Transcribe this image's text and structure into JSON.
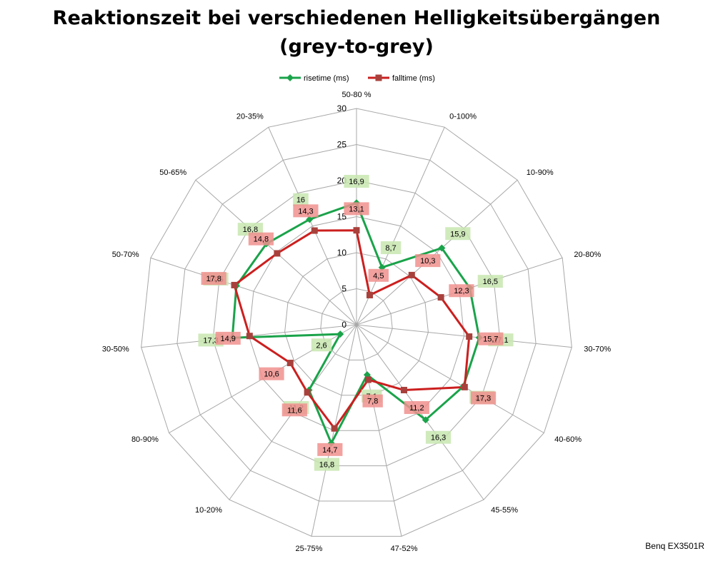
{
  "title_line1": "Reaktionszeit bei verschiedenen Helligkeitsübergängen",
  "title_line2": "(grey-to-grey)",
  "credit": "Benq EX3501R",
  "colors": {
    "rise": "#1aa34a",
    "fall": "#cc1f1f",
    "rise_label_bg": "#c8e6b0",
    "fall_label_bg": "#f0908e"
  },
  "chart_data": {
    "type": "radar",
    "categories": [
      "50-80 %",
      "0-100%",
      "10-90%",
      "20-80%",
      "30-70%",
      "40-60%",
      "45-55%",
      "47-52%",
      "25-75%",
      "10-20%",
      "80-90%",
      "30-50%",
      "50-70%",
      "50-65%",
      "20-35%"
    ],
    "rlim": [
      0,
      30
    ],
    "rticks": [
      0,
      5,
      10,
      15,
      20,
      25,
      30
    ],
    "legend_position": "top",
    "grid": true,
    "series": [
      {
        "name": "risetime (ms)",
        "values": [
          16.9,
          8.7,
          15.9,
          16.5,
          17.1,
          17.1,
          16.3,
          7.1,
          16.8,
          11.2,
          2.6,
          17.3,
          17.5,
          16.8,
          16
        ],
        "labels": [
          "16,9",
          "8,7",
          "15,9",
          "16,5",
          "17,1",
          "17,1",
          "16,3",
          "7,1",
          "16,8",
          "11,2",
          "2,6",
          "17,3",
          "17,5",
          "16,8",
          "16"
        ]
      },
      {
        "name": "falltime (ms)",
        "values": [
          13.1,
          4.5,
          10.3,
          12.3,
          15.7,
          17.3,
          11.2,
          7.8,
          14.7,
          11.6,
          10.6,
          14.9,
          17.8,
          14.8,
          14.3
        ],
        "labels": [
          "13,1",
          "4,5",
          "10,3",
          "12,3",
          "15,7",
          "17,3",
          "11,2",
          "7,8",
          "14,7",
          "11,6",
          "10,6",
          "14,9",
          "17,8",
          "14,8",
          "14,3"
        ]
      }
    ]
  }
}
